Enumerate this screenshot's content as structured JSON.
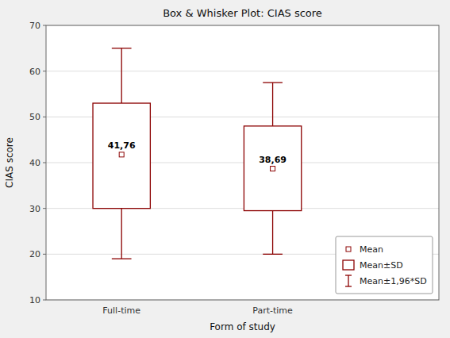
{
  "chart_data": {
    "type": "box",
    "title": "Box & Whisker Plot: CIAS score",
    "xlabel": "Form of study",
    "ylabel": "CIAS score",
    "categories": [
      "Full-time",
      "Part-time"
    ],
    "values": [
      41.76,
      38.69
    ],
    "value_labels": [
      "41,76",
      "38,69"
    ],
    "data_labels": true,
    "box_lower": [
      30.0,
      29.5
    ],
    "box_upper": [
      53.0,
      48.0
    ],
    "whisker_lower": [
      19.0,
      20.0
    ],
    "whisker_upper": [
      65.0,
      57.5
    ],
    "color": "#8B0000",
    "ylim": [
      10,
      70
    ],
    "yticks": [
      10,
      20,
      30,
      40,
      50,
      60,
      70
    ],
    "grid": true,
    "legend": "lower right",
    "legend_entries": [
      "Mean",
      "Mean±SD",
      "Mean±1,96*SD"
    ]
  }
}
